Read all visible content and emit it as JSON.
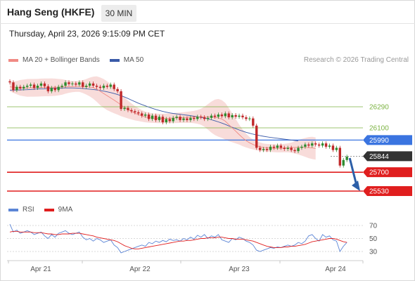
{
  "header": {
    "title": "Hang Seng (HKFE)",
    "timeframe": "30 MIN",
    "datetime": "Thursday, April 23, 2026 9:15:09 PM CET"
  },
  "legend": {
    "ma20": "MA 20 + Bollinger Bands",
    "ma50": "MA 50",
    "credit": "Research © 2026 Trading Central",
    "rsi": "RSI",
    "ma9": "9MA"
  },
  "colors": {
    "bull": "#2e8b2e",
    "bear": "#c0282a",
    "bollinger_fill": "#f7d6d3",
    "ma20": "#f08a84",
    "ma50": "#3a5aa8",
    "pivot": "#3a74e0",
    "support": "#e01e1e",
    "resistance": "#7cb342",
    "last": "#333333",
    "rsi": "#5b85d6",
    "rsi_ma": "#e01e1e",
    "arrow": "#2c5fa8"
  },
  "chart_data": [
    {
      "type": "candlestick",
      "x_ticks": [
        "Apr 21",
        "Apr 22",
        "Apr 23",
        "Apr 24"
      ],
      "levels": [
        {
          "value": 26290,
          "label": "26290",
          "kind": "resistance"
        },
        {
          "value": 26100,
          "label": "26100",
          "kind": "resistance"
        },
        {
          "value": 25990,
          "label": "25990",
          "kind": "pivot"
        },
        {
          "value": 25844,
          "label": "25844",
          "kind": "last"
        },
        {
          "value": 25700,
          "label": "25700",
          "kind": "support"
        },
        {
          "value": 25530,
          "label": "25530",
          "kind": "support"
        }
      ],
      "ylim": [
        25530,
        26560
      ],
      "close": [
        26510,
        26440,
        26470,
        26455,
        26470,
        26480,
        26490,
        26460,
        26480,
        26500,
        26475,
        26430,
        26460,
        26440,
        26470,
        26480,
        26510,
        26495,
        26500,
        26490,
        26510,
        26470,
        26480,
        26500,
        26480,
        26470,
        26460,
        26480,
        26470,
        26490,
        26450,
        26430,
        26270,
        26280,
        26260,
        26250,
        26240,
        26230,
        26210,
        26220,
        26180,
        26210,
        26170,
        26200,
        26150,
        26180,
        26160,
        26190,
        26200,
        26170,
        26185,
        26170,
        26190,
        26180,
        26200,
        26195,
        26180,
        26190,
        26210,
        26200,
        26220,
        26205,
        26230,
        26195,
        26215,
        26200,
        26210,
        26195,
        26180,
        26185,
        26120,
        25920,
        25900,
        25910,
        25900,
        25930,
        25920,
        25940,
        25920,
        25910,
        25920,
        25900,
        25890,
        25920,
        25930,
        25950,
        25940,
        25960,
        25950,
        25940,
        25960,
        25930,
        25940,
        25900,
        25920,
        25760,
        25810,
        25840
      ],
      "ma20": [
        26470,
        26466,
        26463,
        26461,
        26460,
        26460,
        26461,
        26461,
        26462,
        26464,
        26465,
        26465,
        26466,
        26466,
        26467,
        26468,
        26470,
        26471,
        26472,
        26473,
        26474,
        26472,
        26470,
        26468,
        26462,
        26450,
        26430,
        26410,
        26390,
        26370,
        26350,
        26330,
        26305,
        26285,
        26265,
        26248,
        26232,
        26220,
        26208,
        26198,
        26192,
        26188,
        26186,
        26185,
        26185,
        26186,
        26187,
        26188,
        26190,
        26192,
        26193,
        26195,
        26197,
        26198,
        26199,
        26200,
        26200,
        26199,
        26197,
        26195,
        26190,
        26180,
        26160,
        26130,
        26100,
        26070,
        26040,
        26010,
        25985,
        25965,
        25950,
        25938,
        25930,
        25923,
        25920,
        25918,
        25916,
        25915,
        25916,
        25918,
        25920,
        25922,
        25924,
        25925,
        25925,
        25924,
        25922,
        25919,
        25914
      ],
      "ma50": [
        26440,
        26440,
        26441,
        26442,
        26443,
        26444,
        26446,
        26448,
        26450,
        26452,
        26453,
        26455,
        26456,
        26457,
        26458,
        26459,
        26460,
        26460,
        26460,
        26459,
        26457,
        26455,
        26452,
        26449,
        26446,
        26442,
        26437,
        26431,
        26425,
        26418,
        26410,
        26400,
        26390,
        26378,
        26365,
        26350,
        26336,
        26322,
        26310,
        26298,
        26287,
        26276,
        26266,
        26257,
        26248,
        26241,
        26235,
        26230,
        26226,
        26222,
        26218,
        26214,
        26210,
        26205,
        26200,
        26195,
        26188,
        26181,
        26173,
        26164,
        26154,
        26143,
        26131,
        26118,
        26105,
        26093,
        26081,
        26070,
        26060,
        26051,
        26043,
        26036,
        26030,
        26024,
        26019,
        26014,
        26010,
        26006,
        26002,
        25998,
        25994,
        25990,
        25986,
        25982
      ],
      "bb_width": [
        40,
        50,
        60,
        70,
        75,
        80,
        80,
        80,
        80,
        80,
        80,
        80,
        80,
        78,
        74,
        70,
        62,
        55,
        50,
        48,
        50,
        58,
        70,
        85,
        100,
        115,
        125,
        130,
        130,
        125,
        118,
        110,
        100,
        90,
        80,
        72,
        65,
        58,
        52,
        48,
        45,
        43,
        42,
        42,
        42,
        43,
        44,
        45,
        46,
        47,
        48,
        50,
        52,
        56,
        62,
        72,
        90,
        115,
        140,
        160,
        170,
        170,
        165,
        150,
        130,
        110,
        90,
        75,
        62,
        52,
        45,
        40,
        38,
        36,
        35,
        35,
        35,
        36,
        37,
        38,
        40,
        45,
        55,
        65,
        75,
        85,
        95,
        100,
        100
      ]
    },
    {
      "type": "line",
      "name": "RSI",
      "y_ticks": [
        70,
        50,
        30
      ],
      "ylim": [
        20,
        80
      ],
      "rsi": [
        72,
        60,
        63,
        58,
        60,
        62,
        60,
        56,
        58,
        60,
        54,
        50,
        56,
        52,
        58,
        60,
        62,
        58,
        56,
        58,
        60,
        52,
        48,
        50,
        46,
        50,
        48,
        44,
        46,
        48,
        40,
        36,
        28,
        30,
        32,
        34,
        36,
        38,
        40,
        38,
        44,
        42,
        46,
        44,
        47,
        45,
        49,
        47,
        48,
        46,
        50,
        48,
        52,
        49,
        55,
        52,
        56,
        50,
        54,
        52,
        56,
        48,
        46,
        44,
        50,
        48,
        52,
        50,
        46,
        44,
        40,
        32,
        30,
        32,
        34,
        36,
        35,
        37,
        36,
        38,
        40,
        38,
        40,
        44,
        42,
        46,
        54,
        56,
        50,
        46,
        56,
        52,
        54,
        48,
        46,
        30,
        38,
        44
      ],
      "rsi_ma": [
        60,
        61,
        61,
        60,
        60,
        60,
        60,
        59,
        59,
        59,
        58,
        57,
        57,
        56,
        56,
        57,
        57,
        57,
        58,
        58,
        58,
        57,
        56,
        55,
        54,
        52,
        51,
        50,
        49,
        48,
        47,
        45,
        42,
        39,
        37,
        35,
        34,
        34,
        35,
        36,
        37,
        38,
        39,
        40,
        41,
        42,
        43,
        44,
        45,
        46,
        46,
        47,
        47,
        48,
        49,
        50,
        50,
        51,
        51,
        51,
        52,
        52,
        51,
        50,
        50,
        49,
        49,
        49,
        48,
        47,
        46,
        44,
        42,
        40,
        38,
        37,
        36,
        36,
        36,
        37,
        37,
        38,
        38,
        39,
        40,
        41,
        43,
        45,
        46,
        47,
        48,
        49,
        50,
        50,
        49,
        47,
        45,
        44
      ]
    }
  ]
}
